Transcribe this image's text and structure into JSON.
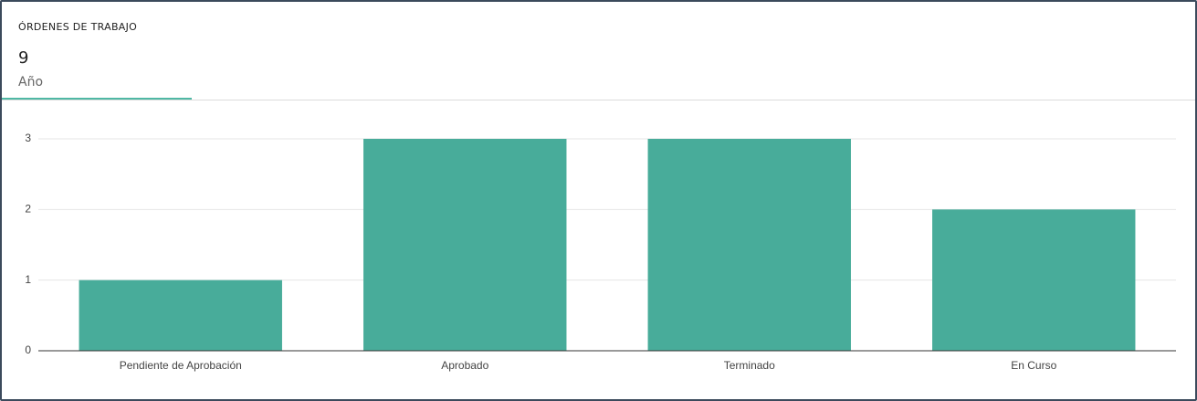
{
  "header": {
    "title": "ÓRDENES DE TRABAJO",
    "total": 9,
    "period": "Año"
  },
  "chart_data": {
    "type": "bar",
    "categories": [
      "Pendiente de Aprobación",
      "Aprobado",
      "Terminado",
      "En Curso"
    ],
    "values": [
      1,
      3,
      3,
      2
    ],
    "color": "#48ac9a",
    "ylim": [
      0,
      3
    ],
    "yticks": [
      0,
      1,
      2,
      3
    ],
    "grid": true
  }
}
